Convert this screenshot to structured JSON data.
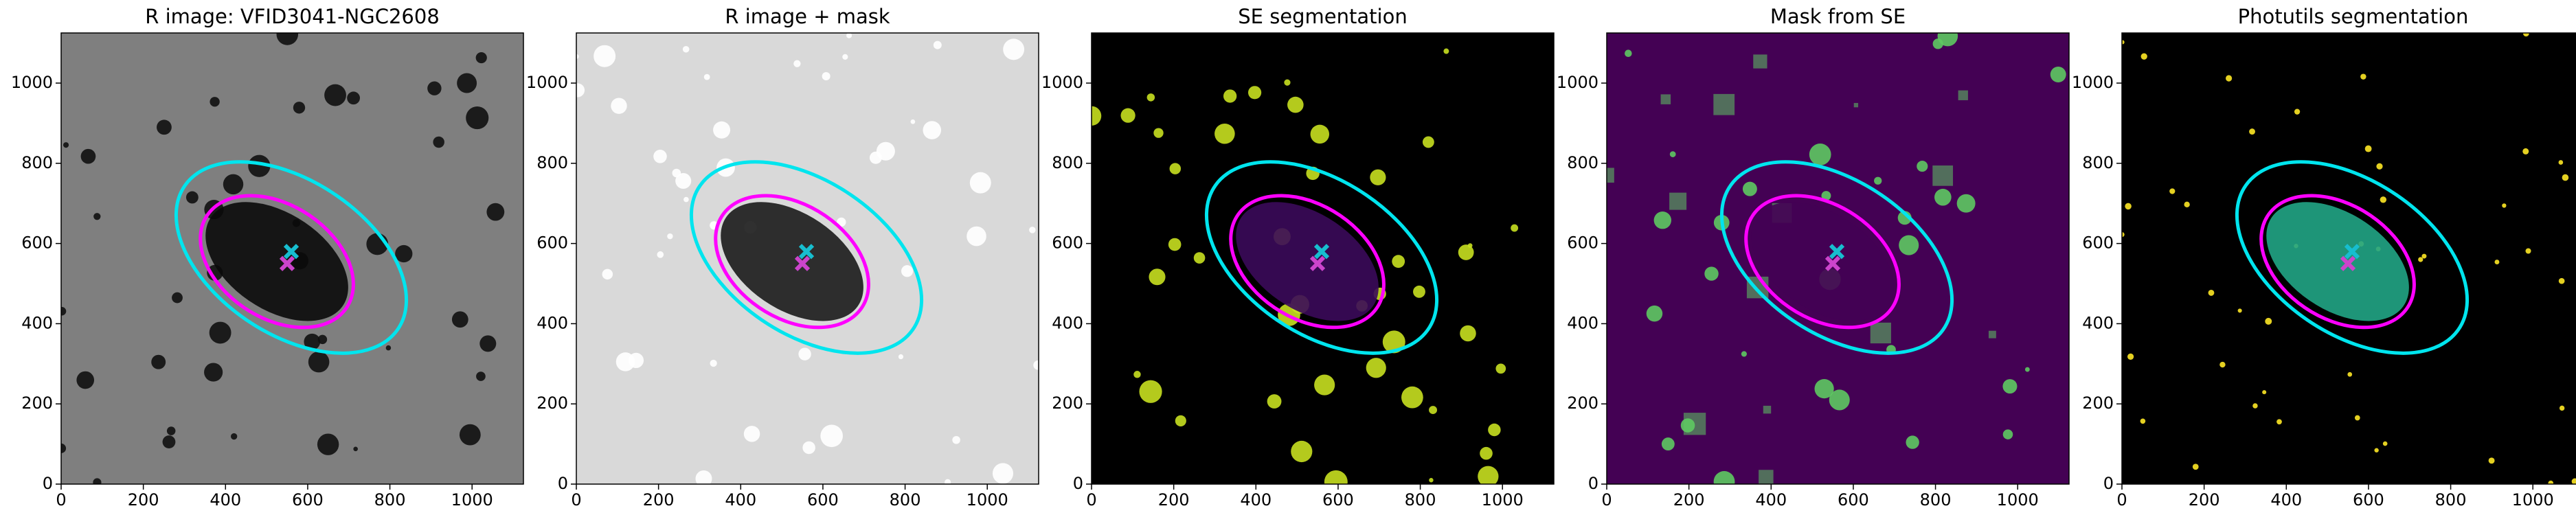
{
  "chart_data": [
    {
      "type": "image",
      "title": "R image: VFID3041-NGC2608",
      "xlim": [
        0,
        1125
      ],
      "ylim": [
        0,
        1125
      ],
      "xticks": [
        0,
        200,
        400,
        600,
        800,
        1000
      ],
      "yticks": [
        0,
        200,
        400,
        600,
        800,
        1000
      ],
      "background": "#7f7f7f",
      "blob_color": "#111111",
      "galaxy_color": "#0a0a0a",
      "ellipses": [
        {
          "color": "#00e5ee",
          "x": 560,
          "y": 565,
          "a": 315,
          "b": 190,
          "angle": -35
        },
        {
          "color": "#ff00ff",
          "x": 525,
          "y": 555,
          "a": 205,
          "b": 140,
          "angle": -35
        }
      ],
      "markers": [
        {
          "color": "#17becf",
          "x": 560,
          "y": 580
        },
        {
          "color": "#cc44cc",
          "x": 550,
          "y": 550
        }
      ]
    },
    {
      "type": "image",
      "title": "R image + mask",
      "xlim": [
        0,
        1125
      ],
      "ylim": [
        0,
        1125
      ],
      "xticks": [
        0,
        200,
        400,
        600,
        800,
        1000
      ],
      "yticks": [
        0,
        200,
        400,
        600,
        800,
        1000
      ],
      "background": "#d9d9d9",
      "blob_color": "#ffffff",
      "galaxy_color": "#1a1a1a",
      "ellipses": [
        {
          "color": "#00e5ee",
          "x": 560,
          "y": 565,
          "a": 315,
          "b": 190,
          "angle": -35
        },
        {
          "color": "#ff00ff",
          "x": 525,
          "y": 555,
          "a": 205,
          "b": 140,
          "angle": -35
        }
      ],
      "markers": [
        {
          "color": "#17becf",
          "x": 560,
          "y": 580
        },
        {
          "color": "#cc44cc",
          "x": 550,
          "y": 550
        }
      ]
    },
    {
      "type": "image",
      "title": "SE segmentation",
      "xlim": [
        0,
        1125
      ],
      "ylim": [
        0,
        1125
      ],
      "xticks": [
        0,
        200,
        400,
        600,
        800,
        1000
      ],
      "yticks": [
        0,
        200,
        400,
        600,
        800,
        1000
      ],
      "background": "#000000",
      "blob_color": "#c8e020",
      "galaxy_color": "#3b0a5a",
      "ellipses": [
        {
          "color": "#00e5ee",
          "x": 560,
          "y": 565,
          "a": 315,
          "b": 190,
          "angle": -35
        },
        {
          "color": "#ff00ff",
          "x": 525,
          "y": 555,
          "a": 205,
          "b": 140,
          "angle": -35
        }
      ],
      "markers": [
        {
          "color": "#17becf",
          "x": 560,
          "y": 580
        },
        {
          "color": "#cc44cc",
          "x": 550,
          "y": 550
        }
      ]
    },
    {
      "type": "image",
      "title": "Mask from SE",
      "xlim": [
        0,
        1125
      ],
      "ylim": [
        0,
        1125
      ],
      "xticks": [
        0,
        200,
        400,
        600,
        800,
        1000
      ],
      "yticks": [
        0,
        200,
        400,
        600,
        800,
        1000
      ],
      "background": "#440154",
      "blob_color": "#5ec962",
      "galaxy_color": "#440154",
      "ellipses": [
        {
          "color": "#00e5ee",
          "x": 560,
          "y": 565,
          "a": 315,
          "b": 190,
          "angle": -35
        },
        {
          "color": "#ff00ff",
          "x": 525,
          "y": 555,
          "a": 205,
          "b": 140,
          "angle": -35
        }
      ],
      "markers": [
        {
          "color": "#17becf",
          "x": 560,
          "y": 580
        },
        {
          "color": "#cc44cc",
          "x": 550,
          "y": 550
        }
      ]
    },
    {
      "type": "image",
      "title": "Photutils segmentation",
      "xlim": [
        0,
        1125
      ],
      "ylim": [
        0,
        1125
      ],
      "xticks": [
        0,
        200,
        400,
        600,
        800,
        1000
      ],
      "yticks": [
        0,
        200,
        400,
        600,
        800,
        1000
      ],
      "background": "#000000",
      "blob_color": "#fde725",
      "galaxy_color": "#21a585",
      "ellipses": [
        {
          "color": "#00e5ee",
          "x": 560,
          "y": 565,
          "a": 315,
          "b": 190,
          "angle": -35
        },
        {
          "color": "#ff00ff",
          "x": 525,
          "y": 555,
          "a": 205,
          "b": 140,
          "angle": -35
        }
      ],
      "markers": [
        {
          "color": "#17becf",
          "x": 560,
          "y": 580
        },
        {
          "color": "#cc44cc",
          "x": 550,
          "y": 550
        }
      ]
    }
  ]
}
